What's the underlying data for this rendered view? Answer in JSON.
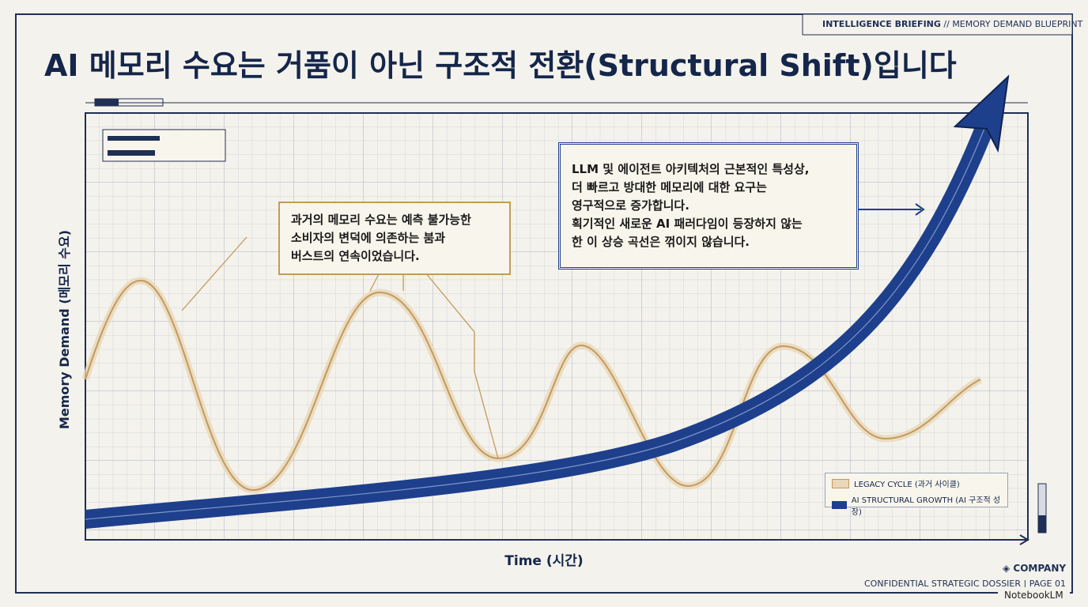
{
  "header": {
    "tag_bold": "INTELLIGENCE BRIEFING",
    "tag_rest": "// MEMORY DEMAND BLUEPRINT",
    "title": "AI 메모리 수요는 거품이 아닌 구조적 전환(Structural Shift)입니다"
  },
  "axes": {
    "y_label": "Memory Demand (메모리 수요)",
    "x_label": "Time (시간)"
  },
  "callouts": [
    {
      "lines": [
        "과거의 메모리 수요는 예측 불가능한",
        "소비자의 변덕에 의존하는 붐과",
        "버스트의 연속이었습니다."
      ]
    },
    {
      "lines": [
        "LLM 및 에이전트 아키텍처의 근본적인 특성상,",
        "더 빠르고 방대한 메모리에 대한 요구는",
        "영구적으로 증가합니다.",
        "획기적인 새로운 AI 패러다임이 등장하지 않는",
        "한 이 상승 곡선은 꺾이지 않습니다."
      ]
    }
  ],
  "legend": [
    "LEGACY CYCLE (과거 사이클)",
    "AI STRUCTURAL GROWTH (AI 구조적 성장)"
  ],
  "footer": {
    "company": "COMPANY",
    "dossier": "CONFIDENTIAL STRATEGIC DOSSIER | PAGE 01",
    "brand": "NotebookLM"
  }
}
